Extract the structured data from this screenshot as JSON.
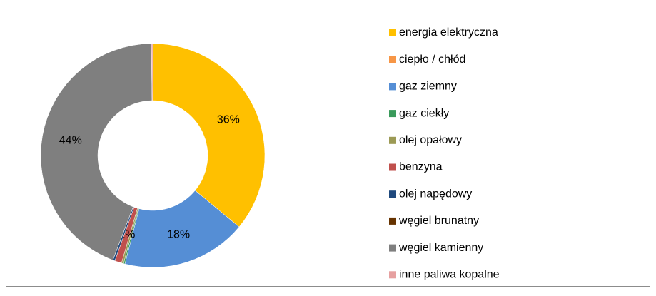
{
  "chart_data": {
    "type": "donut",
    "categories": [
      "energia elektryczna",
      "ciepło / chłód",
      "gaz ziemny",
      "gaz ciekły",
      "olej opałowy",
      "benzyna",
      "olej napędowy",
      "węgiel brunatny",
      "węgiel kamienny",
      "inne paliwa kopalne"
    ],
    "values": [
      36,
      0,
      18,
      0.2,
      0.3,
      1,
      0.3,
      0,
      44,
      0.2
    ],
    "value_labels": [
      "36%",
      null,
      "18%",
      null,
      null,
      "1%",
      null,
      null,
      "44%",
      null
    ],
    "colors": [
      "#ffc000",
      "#f79646",
      "#558ed5",
      "#3a9a5b",
      "#9c9a55",
      "#c0504d",
      "#1f497d",
      "#663300",
      "#7f7f7f",
      "#e6a0a0"
    ],
    "legend": "right"
  }
}
